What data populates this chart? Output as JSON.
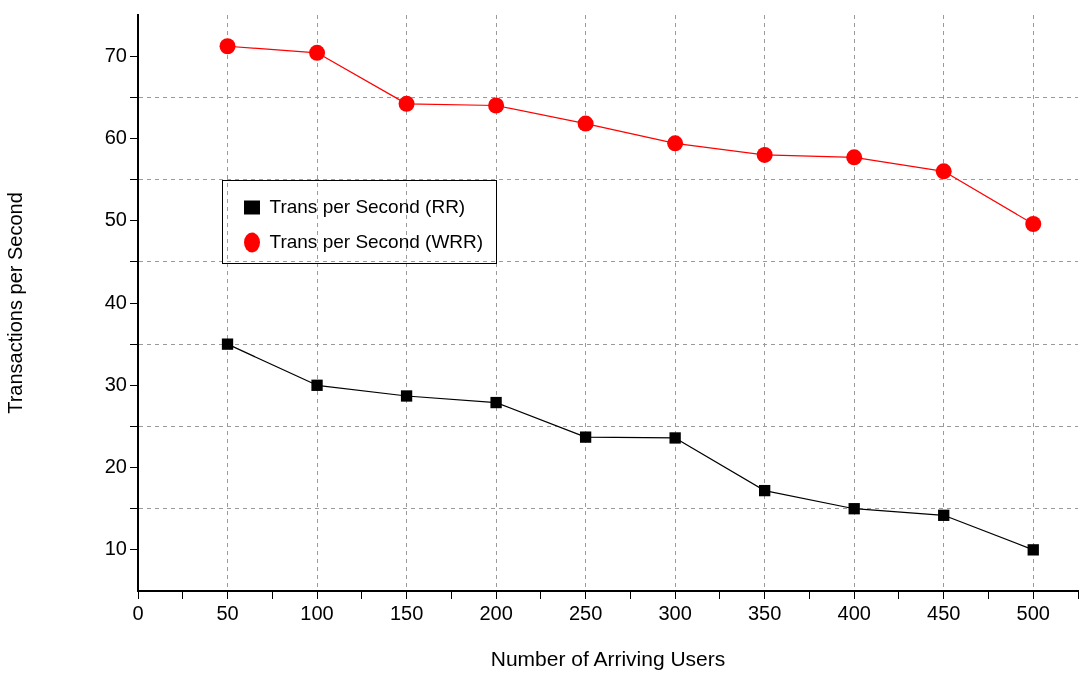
{
  "chart_data": {
    "type": "line",
    "xlabel": "Number of Arriving Users",
    "ylabel": "Transactions per Second",
    "x": [
      50,
      100,
      150,
      200,
      250,
      300,
      350,
      400,
      450,
      500
    ],
    "series": [
      {
        "name": "Trans per Second (RR)",
        "color": "#000000",
        "marker": "square",
        "values": [
          35.0,
          30.0,
          28.7,
          27.9,
          23.7,
          23.6,
          17.2,
          15.0,
          14.2,
          10.0
        ]
      },
      {
        "name": "Trans per Second (WRR)",
        "color": "#ff0000",
        "marker": "circle",
        "values": [
          71.2,
          70.4,
          64.2,
          64.0,
          61.8,
          59.4,
          58.0,
          57.7,
          56.0,
          49.6
        ]
      }
    ],
    "xlim": [
      0,
      525
    ],
    "xticks": [
      0,
      {
        "value": 25,
        "label": null
      },
      50,
      {
        "value": 75,
        "label": null
      },
      100,
      {
        "value": 125,
        "label": null
      },
      150,
      {
        "value": 175,
        "label": null
      },
      200,
      {
        "value": 225,
        "label": null
      },
      250,
      {
        "value": 275,
        "label": null
      },
      300,
      {
        "value": 325,
        "label": null
      },
      350,
      {
        "value": 375,
        "label": null
      },
      400,
      {
        "value": 425,
        "label": null
      },
      450,
      {
        "value": 475,
        "label": null
      },
      500,
      {
        "value": 525,
        "label": null
      }
    ],
    "ylim": [
      5,
      75
    ],
    "yticks": [
      10,
      {
        "value": 15,
        "label": null
      },
      20,
      {
        "value": 25,
        "label": null
      },
      30,
      {
        "value": 35,
        "label": null
      },
      40,
      {
        "value": 45,
        "label": null
      },
      50,
      {
        "value": 55,
        "label": null
      },
      60,
      {
        "value": 65,
        "label": null
      },
      70
    ],
    "grid": true,
    "legend": "top left",
    "line_style": "solid"
  }
}
